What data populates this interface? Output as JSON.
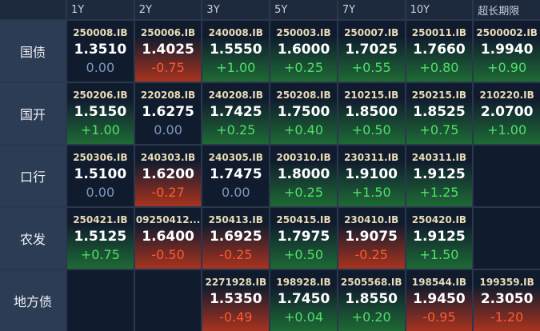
{
  "table": {
    "columns": [
      "1Y",
      "2Y",
      "3Y",
      "5Y",
      "7Y",
      "10Y",
      "超长期限"
    ],
    "rows": [
      {
        "label": "国债",
        "cells": [
          {
            "code": "250008.IB",
            "yield": "1.3510",
            "change": "0.00"
          },
          {
            "code": "250006.IB",
            "yield": "1.4025",
            "change": "-0.75"
          },
          {
            "code": "240008.IB",
            "yield": "1.5550",
            "change": "+1.00"
          },
          {
            "code": "250003.IB",
            "yield": "1.6000",
            "change": "+0.25"
          },
          {
            "code": "250007.IB",
            "yield": "1.7025",
            "change": "+0.55"
          },
          {
            "code": "250011.IB",
            "yield": "1.7660",
            "change": "+0.80"
          },
          {
            "code": "2500002.IB",
            "yield": "1.9940",
            "change": "+0.90"
          }
        ]
      },
      {
        "label": "国开",
        "cells": [
          {
            "code": "250206.IB",
            "yield": "1.5150",
            "change": "+1.00"
          },
          {
            "code": "220208.IB",
            "yield": "1.6275",
            "change": "0.00"
          },
          {
            "code": "240208.IB",
            "yield": "1.7425",
            "change": "+0.25"
          },
          {
            "code": "250208.IB",
            "yield": "1.7500",
            "change": "+0.40"
          },
          {
            "code": "210215.IB",
            "yield": "1.8500",
            "change": "+0.50"
          },
          {
            "code": "250215.IB",
            "yield": "1.8525",
            "change": "+0.75"
          },
          {
            "code": "210220.IB",
            "yield": "2.0700",
            "change": "+1.00"
          }
        ]
      },
      {
        "label": "口行",
        "cells": [
          {
            "code": "250306.IB",
            "yield": "1.5100",
            "change": "0.00"
          },
          {
            "code": "240303.IB",
            "yield": "1.6200",
            "change": "-0.27"
          },
          {
            "code": "240305.IB",
            "yield": "1.7475",
            "change": "0.00"
          },
          {
            "code": "200310.IB",
            "yield": "1.8000",
            "change": "+0.25"
          },
          {
            "code": "230311.IB",
            "yield": "1.9100",
            "change": "+1.50"
          },
          {
            "code": "240311.IB",
            "yield": "1.9125",
            "change": "+1.25"
          },
          null
        ]
      },
      {
        "label": "农发",
        "cells": [
          {
            "code": "250421.IB",
            "yield": "1.5125",
            "change": "+0.75"
          },
          {
            "code": "09250412...",
            "yield": "1.6400",
            "change": "-0.50"
          },
          {
            "code": "250413.IB",
            "yield": "1.6925",
            "change": "-0.25"
          },
          {
            "code": "250415.IB",
            "yield": "1.7975",
            "change": "+0.50"
          },
          {
            "code": "230410.IB",
            "yield": "1.9075",
            "change": "-0.25"
          },
          {
            "code": "250420.IB",
            "yield": "1.9125",
            "change": "+1.50"
          },
          null
        ]
      },
      {
        "label": "地方债",
        "cells": [
          null,
          null,
          {
            "code": "2271928.IB",
            "yield": "1.5350",
            "change": "-0.49"
          },
          {
            "code": "198928.IB",
            "yield": "1.7450",
            "change": "+0.04"
          },
          {
            "code": "2505568.IB",
            "yield": "1.8550",
            "change": "+0.20"
          },
          {
            "code": "198544.IB",
            "yield": "1.9450",
            "change": "-0.95"
          },
          {
            "code": "199359.IB",
            "yield": "2.3050",
            "change": "-1.20"
          }
        ]
      }
    ]
  }
}
